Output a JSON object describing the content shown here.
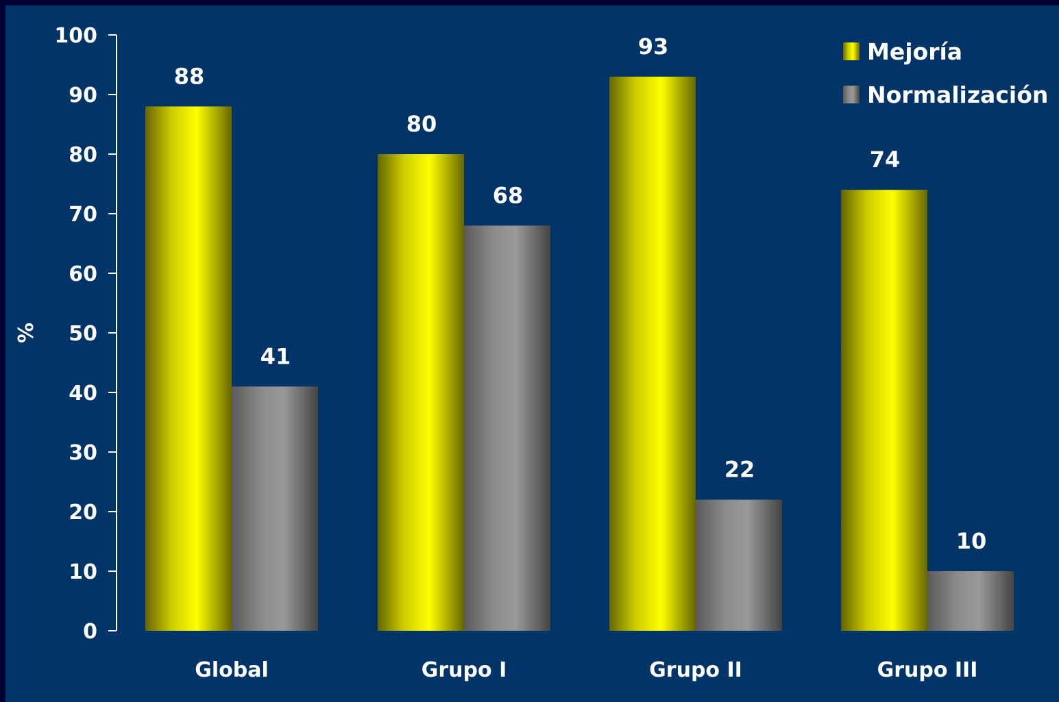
{
  "chart_data": {
    "type": "bar",
    "categories": [
      "Global",
      "Grupo I",
      "Grupo II",
      "Grupo III"
    ],
    "series": [
      {
        "name": "Mejoría",
        "values": [
          88,
          80,
          93,
          74
        ],
        "color": "#ffff00"
      },
      {
        "name": "Normalización",
        "values": [
          41,
          68,
          22,
          10
        ],
        "color": "#999999"
      }
    ],
    "ylabel": "%",
    "ylim": [
      0,
      100
    ],
    "yticks": [
      "0",
      "10",
      "20",
      "30",
      "40",
      "50",
      "60",
      "70",
      "80",
      "90",
      "100"
    ],
    "legend_position": "top-right",
    "grid": false
  },
  "colors": {
    "background": "#003366",
    "border": "#000033",
    "text": "#ffffff"
  }
}
